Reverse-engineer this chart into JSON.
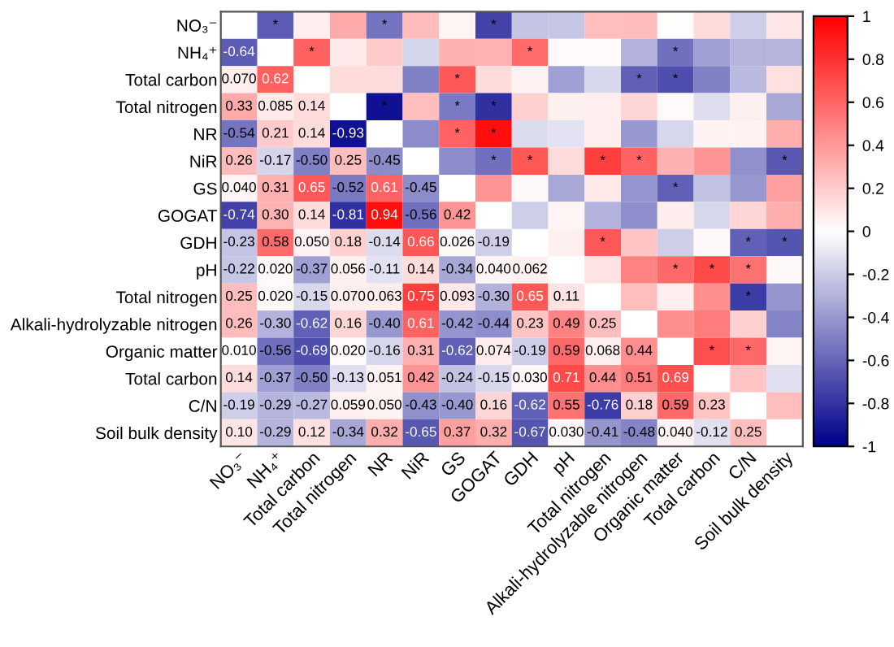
{
  "chart_data": {
    "type": "heatmap",
    "categories": [
      "NO₃⁻",
      "NH₄⁺",
      "Total carbon",
      "Total nitrogen",
      "NR",
      "NiR",
      "GS",
      "GOGAT",
      "GDH",
      "pH",
      "Total nitrogen",
      "Alkali-hydrolyzable nitrogen",
      "Organic matter",
      "Total carbon",
      "C/N",
      "Soil bulk density"
    ],
    "y_categories": [
      "NO₃⁻",
      "NH₄⁺",
      "Total carbon",
      "Total nitrogen",
      "NR",
      "NiR",
      "GS",
      "GOGAT",
      "GDH",
      "pH",
      "Total nitrogen",
      "Alkali-hydrolyzable nitrogen",
      "Organic matter",
      "Total carbon",
      "C/N",
      "Soil bulk density"
    ],
    "cells": [
      [
        null,
        -0.64,
        0.07,
        0.33,
        -0.54,
        0.26,
        0.04,
        -0.74,
        -0.23,
        -0.22,
        0.25,
        0.26,
        0.01,
        0.14,
        -0.19,
        0.1
      ],
      [
        -0.64,
        null,
        0.62,
        0.085,
        0.21,
        -0.17,
        0.31,
        0.3,
        0.58,
        0.02,
        0.02,
        -0.3,
        -0.56,
        -0.37,
        -0.29,
        -0.29
      ],
      [
        0.07,
        0.62,
        null,
        0.14,
        0.14,
        -0.5,
        0.65,
        0.14,
        0.05,
        -0.37,
        -0.15,
        -0.62,
        -0.69,
        -0.5,
        -0.27,
        0.12
      ],
      [
        0.33,
        0.085,
        0.14,
        null,
        -0.93,
        0.25,
        -0.52,
        -0.81,
        0.18,
        0.056,
        0.07,
        0.16,
        0.02,
        -0.13,
        0.059,
        -0.34
      ],
      [
        -0.54,
        0.21,
        0.14,
        -0.93,
        null,
        -0.45,
        0.61,
        0.94,
        -0.14,
        -0.11,
        0.063,
        -0.4,
        -0.16,
        0.051,
        0.05,
        0.32
      ],
      [
        0.26,
        -0.17,
        -0.5,
        0.25,
        -0.45,
        null,
        -0.45,
        -0.56,
        0.66,
        0.14,
        0.75,
        0.61,
        0.31,
        0.42,
        -0.43,
        -0.65
      ],
      [
        0.04,
        0.31,
        0.65,
        -0.52,
        0.61,
        -0.45,
        null,
        0.42,
        0.026,
        -0.34,
        0.093,
        -0.42,
        -0.62,
        -0.24,
        -0.4,
        0.37
      ],
      [
        -0.74,
        0.3,
        0.14,
        -0.81,
        0.94,
        -0.56,
        0.42,
        null,
        -0.19,
        0.04,
        -0.3,
        -0.44,
        0.074,
        -0.15,
        0.16,
        0.32
      ],
      [
        -0.23,
        0.58,
        0.05,
        0.18,
        -0.14,
        0.66,
        0.026,
        -0.19,
        null,
        0.062,
        0.65,
        0.23,
        -0.19,
        0.03,
        -0.62,
        -0.67
      ],
      [
        -0.22,
        0.02,
        -0.37,
        0.056,
        -0.11,
        0.14,
        -0.34,
        0.04,
        0.062,
        null,
        0.11,
        0.49,
        0.59,
        0.71,
        0.55,
        0.03
      ],
      [
        0.25,
        0.02,
        -0.15,
        0.07,
        0.063,
        0.75,
        0.093,
        -0.3,
        0.65,
        0.11,
        null,
        0.25,
        0.068,
        0.44,
        -0.76,
        -0.41
      ],
      [
        0.26,
        -0.3,
        -0.62,
        0.16,
        -0.4,
        0.61,
        -0.42,
        -0.44,
        0.23,
        0.49,
        0.25,
        null,
        0.44,
        0.51,
        0.18,
        -0.48
      ],
      [
        0.01,
        -0.56,
        -0.69,
        0.02,
        -0.16,
        0.31,
        -0.62,
        0.074,
        -0.19,
        0.59,
        0.068,
        0.44,
        null,
        0.69,
        0.59,
        0.04
      ],
      [
        0.14,
        -0.37,
        -0.5,
        -0.13,
        0.051,
        0.42,
        -0.24,
        -0.15,
        0.03,
        0.71,
        0.44,
        0.51,
        0.69,
        null,
        0.23,
        -0.12
      ],
      [
        -0.19,
        -0.29,
        -0.27,
        0.059,
        0.05,
        -0.43,
        -0.4,
        0.16,
        -0.62,
        0.55,
        -0.76,
        0.18,
        0.59,
        0.23,
        null,
        0.25
      ],
      [
        0.1,
        -0.29,
        0.12,
        -0.34,
        0.32,
        -0.65,
        0.37,
        0.32,
        -0.67,
        0.03,
        -0.41,
        -0.48,
        0.04,
        -0.12,
        0.25,
        null
      ]
    ],
    "cell_labels": [
      [
        null,
        "*",
        null,
        null,
        "*",
        null,
        null,
        "*",
        null,
        null,
        null,
        null,
        null,
        null,
        null,
        null
      ],
      [
        "-0.64",
        null,
        "*",
        null,
        null,
        null,
        null,
        null,
        "*",
        null,
        null,
        null,
        "*",
        null,
        null,
        null
      ],
      [
        "0.070",
        "0.62",
        null,
        null,
        null,
        null,
        "*",
        null,
        null,
        null,
        null,
        "*",
        "*",
        null,
        null,
        null
      ],
      [
        "0.33",
        "0.085",
        "0.14",
        null,
        "*",
        null,
        "*",
        "*",
        null,
        null,
        null,
        null,
        null,
        null,
        null,
        null
      ],
      [
        "-0.54",
        "0.21",
        "0.14",
        "-0.93",
        null,
        null,
        "*",
        "*",
        null,
        null,
        null,
        null,
        null,
        null,
        null,
        null
      ],
      [
        "0.26",
        "-0.17",
        "-0.50",
        "0.25",
        "-0.45",
        null,
        null,
        "*",
        "*",
        null,
        "*",
        "*",
        null,
        null,
        null,
        "*"
      ],
      [
        "0.040",
        "0.31",
        "0.65",
        "-0.52",
        "0.61",
        "-0.45",
        null,
        null,
        null,
        null,
        null,
        null,
        "*",
        null,
        null,
        null
      ],
      [
        "-0.74",
        "0.30",
        "0.14",
        "-0.81",
        "0.94",
        "-0.56",
        "0.42",
        null,
        null,
        null,
        null,
        null,
        null,
        null,
        null,
        null
      ],
      [
        "-0.23",
        "0.58",
        "0.050",
        "0.18",
        "-0.14",
        "0.66",
        "0.026",
        "-0.19",
        null,
        null,
        "*",
        null,
        null,
        null,
        "*",
        "*"
      ],
      [
        "-0.22",
        "0.020",
        "-0.37",
        "0.056",
        "-0.11",
        "0.14",
        "-0.34",
        "0.040",
        "0.062",
        null,
        null,
        null,
        "*",
        "*",
        "*",
        null
      ],
      [
        "0.25",
        "0.020",
        "-0.15",
        "0.070",
        "0.063",
        "0.75",
        "0.093",
        "-0.30",
        "0.65",
        "0.11",
        null,
        null,
        null,
        null,
        "*",
        null
      ],
      [
        "0.26",
        "-0.30",
        "-0.62",
        "0.16",
        "-0.40",
        "0.61",
        "-0.42",
        "-0.44",
        "0.23",
        "0.49",
        "0.25",
        null,
        null,
        null,
        null,
        null
      ],
      [
        "0.010",
        "-0.56",
        "-0.69",
        "0.020",
        "-0.16",
        "0.31",
        "-0.62",
        "0.074",
        "-0.19",
        "0.59",
        "0.068",
        "0.44",
        null,
        "*",
        "*",
        null
      ],
      [
        "0.14",
        "-0.37",
        "-0.50",
        "-0.13",
        "0.051",
        "0.42",
        "-0.24",
        "-0.15",
        "0.030",
        "0.71",
        "0.44",
        "0.51",
        "0.69",
        null,
        null,
        null
      ],
      [
        "-0.19",
        "-0.29",
        "-0.27",
        "0.059",
        "0.050",
        "-0.43",
        "-0.40",
        "0.16",
        "-0.62",
        "0.55",
        "-0.76",
        "0.18",
        "0.59",
        "0.23",
        null,
        null
      ],
      [
        "0.10",
        "-0.29",
        "0.12",
        "-0.34",
        "0.32",
        "-0.65",
        "0.37",
        "0.32",
        "-0.67",
        "0.030",
        "-0.41",
        "-0.48",
        "0.040",
        "-0.12",
        "0.25",
        null
      ]
    ],
    "clim": [
      -1,
      1
    ],
    "cticks": [
      -1,
      -0.8,
      -0.6,
      -0.4,
      -0.2,
      0,
      0.2,
      0.4,
      0.6,
      0.8,
      1
    ]
  }
}
